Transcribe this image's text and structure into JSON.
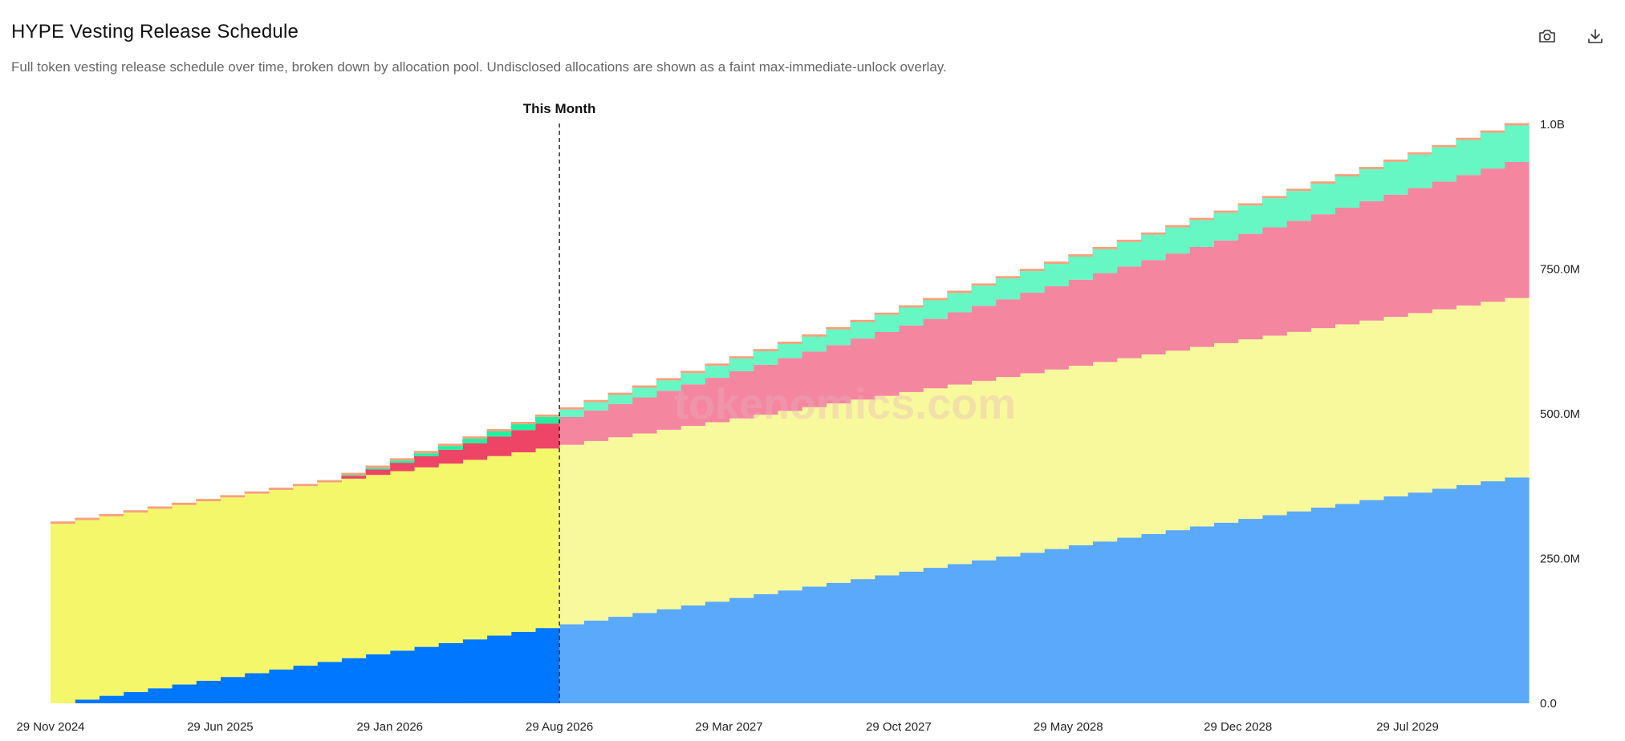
{
  "header": {
    "title": "HYPE Vesting Release Schedule",
    "subtitle": "Full token vesting release schedule over time, broken down by allocation pool. Undisclosed allocations are shown as a faint max-immediate-unlock overlay."
  },
  "toolbar": {
    "screenshot_icon": "camera-icon",
    "download_icon": "download-icon"
  },
  "watermark": "tokenomics.com",
  "chart_data": {
    "type": "area",
    "stacked": true,
    "step": true,
    "title": "HYPE Vesting Release Schedule",
    "marker": {
      "label": "This Month",
      "date": "29 Aug 2026"
    },
    "x_start": "29 Nov 2024",
    "x_end": "29 Nov 2029",
    "x_ticks": [
      "29 Nov 2024",
      "29 Jun 2025",
      "29 Jan 2026",
      "29 Aug 2026",
      "29 Mar 2027",
      "29 Oct 2027",
      "29 May 2028",
      "29 Dec 2028",
      "29 Jul 2029"
    ],
    "y_ticks": [
      "0.0",
      "250.0M",
      "500.0M",
      "750.0M",
      "1.0B"
    ],
    "ylim": [
      0,
      1000000000
    ],
    "yaxis_position": "right",
    "grid": false,
    "months": 61,
    "series": [
      {
        "color": "#0077ff",
        "past_color": "#0077ff",
        "future_color": "#5aa9fb",
        "start_month": 1,
        "values_start": 0,
        "values_end": 390000000,
        "curve": "linear"
      },
      {
        "color": "#f5f76a",
        "past_color": "#f5f76a",
        "future_color": "#f8f99d",
        "start_month": 0,
        "values_start": 310000000,
        "values_end": 310000000,
        "curve": "linear"
      },
      {
        "color": "#ee4466",
        "past_color": "#ee4466",
        "future_color": "#f486a0",
        "start_month": 12,
        "values_start": 0,
        "values_end": 235000000,
        "curve": "linear"
      },
      {
        "color": "#22f0a0",
        "past_color": "#22f0a0",
        "future_color": "#66f7c4",
        "start_month": 12,
        "values_start": 0,
        "values_end": 63000000,
        "curve": "linear"
      },
      {
        "color": "#f4a27e",
        "past_color": "#f4a27e",
        "future_color": "#f4a27e",
        "start_month": 0,
        "values_start": 4000000,
        "values_end": 4000000,
        "curve": "flat"
      }
    ],
    "past_until_month": 21
  }
}
